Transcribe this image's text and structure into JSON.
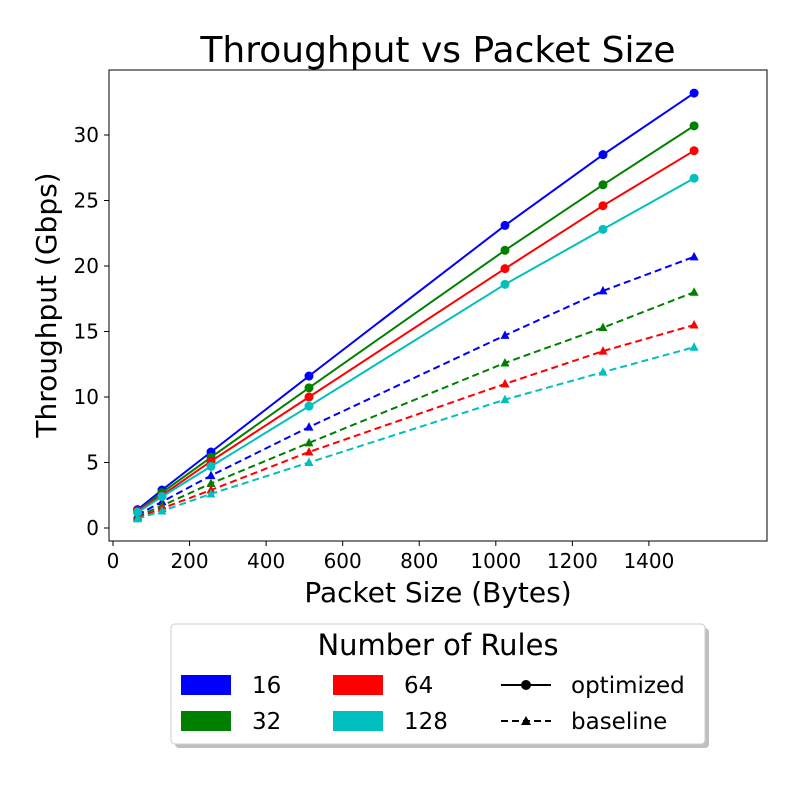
{
  "chart_data": {
    "type": "line",
    "title": "Throughput vs Packet Size",
    "xlabel": "Packet Size (Bytes)",
    "ylabel": "Throughput (Gbps)",
    "x": [
      64,
      128,
      256,
      512,
      1024,
      1280,
      1518
    ],
    "xlim": [
      0,
      1600
    ],
    "ylim": [
      0,
      35
    ],
    "xticks": [
      0,
      200,
      400,
      600,
      800,
      1000,
      1200,
      1400
    ],
    "yticks": [
      0,
      5,
      10,
      15,
      20,
      25,
      30
    ],
    "grid": false,
    "series": [
      {
        "rules": "16",
        "variant": "optimized",
        "color": "#0000ff",
        "marker": "circle",
        "dash": "solid",
        "values": [
          1.4,
          2.9,
          5.8,
          11.6,
          23.1,
          28.5,
          33.2
        ]
      },
      {
        "rules": "32",
        "variant": "optimized",
        "color": "#008000",
        "marker": "circle",
        "dash": "solid",
        "values": [
          1.3,
          2.7,
          5.4,
          10.7,
          21.2,
          26.2,
          30.7
        ]
      },
      {
        "rules": "64",
        "variant": "optimized",
        "color": "#ff0000",
        "marker": "circle",
        "dash": "solid",
        "values": [
          1.3,
          2.5,
          5.1,
          10.0,
          19.8,
          24.6,
          28.8
        ]
      },
      {
        "rules": "128",
        "variant": "optimized",
        "color": "#00bfbf",
        "marker": "circle",
        "dash": "solid",
        "values": [
          1.2,
          2.4,
          4.7,
          9.3,
          18.6,
          22.8,
          26.7
        ]
      },
      {
        "rules": "16",
        "variant": "baseline",
        "color": "#0000ff",
        "marker": "triangle",
        "dash": "dashed",
        "values": [
          1.0,
          2.0,
          4.0,
          7.7,
          14.7,
          18.1,
          20.7
        ]
      },
      {
        "rules": "32",
        "variant": "baseline",
        "color": "#008000",
        "marker": "triangle",
        "dash": "dashed",
        "values": [
          0.9,
          1.7,
          3.4,
          6.5,
          12.6,
          15.3,
          18.0
        ]
      },
      {
        "rules": "64",
        "variant": "baseline",
        "color": "#ff0000",
        "marker": "triangle",
        "dash": "dashed",
        "values": [
          0.8,
          1.5,
          2.9,
          5.8,
          11.0,
          13.5,
          15.5
        ]
      },
      {
        "rules": "128",
        "variant": "baseline",
        "color": "#00bfbf",
        "marker": "triangle",
        "dash": "dashed",
        "values": [
          0.7,
          1.3,
          2.6,
          5.0,
          9.8,
          11.9,
          13.8
        ]
      }
    ],
    "legend": {
      "title": "Number of Rules",
      "placement": "bottom-center",
      "color_entries": [
        {
          "label": "16",
          "color": "#0000ff"
        },
        {
          "label": "32",
          "color": "#008000"
        },
        {
          "label": "64",
          "color": "#ff0000"
        },
        {
          "label": "128",
          "color": "#00bfbf"
        }
      ],
      "style_entries": [
        {
          "label": "optimized",
          "marker": "circle",
          "dash": "solid"
        },
        {
          "label": "baseline",
          "marker": "triangle",
          "dash": "dashed"
        }
      ]
    }
  }
}
